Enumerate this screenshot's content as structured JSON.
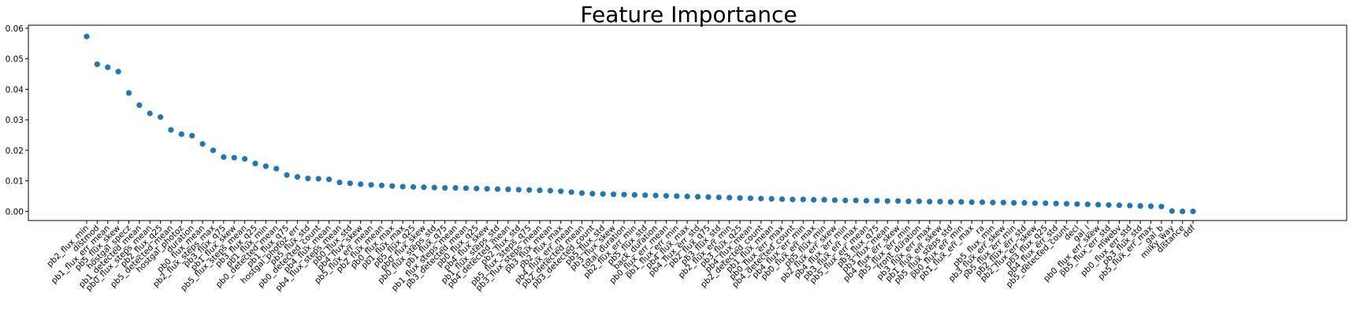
{
  "chart_data": {
    "type": "scatter",
    "title": "Feature Importance",
    "xlabel": "",
    "ylabel": "",
    "ylim": [
      -0.003,
      0.061
    ],
    "yticks": [
      "0.00",
      "0.01",
      "0.02",
      "0.03",
      "0.04",
      "0.05",
      "0.06"
    ],
    "grid": false,
    "marker_color": "#1f77b4",
    "categories": [
      "pb2_flux_min",
      "distmod",
      "pb1_flux_err_mean",
      "pb5_flux_skew",
      "hostgal_specz",
      "pb1_detected_mean",
      "pb0_flux_steps_mean",
      "pb2_flux_q25",
      "pb5_detected_mean",
      "hostgal_photoz",
      "duration",
      "pb0_flux_mean",
      "pb2_flux_steps_max",
      "pb3_flux_q75",
      "pb1_flux_skew",
      "pb5_flux_steps_mean",
      "pb3_flux_q25",
      "pb1_flux_min",
      "pb0_detected_mean",
      "pb1_flux_q75",
      "hostgal_photoz_err",
      "pb5_flux_std",
      "pb0_detected_count",
      "pb4_flux_mean",
      "pb4_flux_steps_mean",
      "pb0_flux_std",
      "pb4_flux_skew",
      "pb5_flux_err_mean",
      "pb2_flux_mean",
      "pb0_flux_max",
      "pb1_flux_max",
      "pb5_flux_q25",
      "pb0_flux_skew",
      "pb0_flux_steps_std",
      "pb1_flux_q75",
      "pb1_flux_steps_mean",
      "pb3_detected_mean",
      "pb0_flux_q25",
      "pb4_flux_skew",
      "pb1_flux_steps_std",
      "pb4_detected_mean",
      "pb2_flux_std",
      "pb5_flux_steps_q75",
      "pb3_flux_steps_mean",
      "pb3_flux_mean",
      "pb2_flux_max",
      "pb4_flux_err_mean",
      "pb2_detected_mean",
      "pb3_detected_count",
      "pb5_flux_std",
      "pb3_flux_skew",
      "total_duration",
      "pb2_flux_err_min",
      "pb5_flux_std",
      "back_duration",
      "pb0_flux_err_mean",
      "pb1_flux_err_min",
      "pb4_flux_max",
      "pb4_flux_err_std",
      "pb2_flux_q75",
      "pb3_flux_std",
      "pb2_flux_err_min",
      "pb3_flux_q25",
      "pb4_flux_mean",
      "pb2_detected_count",
      "pb1_flux_mean",
      "pb0_flux_err_max",
      "pb4_detected_count",
      "pb4_flux_err_min",
      "pb0_flux_err_max",
      "pb5_flux_min",
      "pb2_flux_err_skew",
      "pb4_flux_err_min",
      "pb3_flux_err_max",
      "pb5_flux_err_mean",
      "pb3_flux_q75",
      "pb3_flux_mean",
      "pb4_flux_err_skew",
      "pb5_flux_err_min",
      "front_duration",
      "pb3_flux_err_max",
      "pb1_flux_err_skew",
      "pb5_flux_steps_std",
      "pb0_flux_err_min",
      "pb1_flux_err_max",
      "ra",
      "pb5_flux_min",
      "pb3_flux_err_skew",
      "pb5_flux_err_min",
      "pb2_flux_err_std",
      "pb2_flux_err_skew",
      "pb3_flux_q25",
      "pb4_flux_err_std",
      "pb5_detected_count",
      "decl",
      "gal_l",
      "pb0_flux_err_skew",
      "pb5_flux_err_std",
      "mwebv",
      "pb0_flux_err_std",
      "pb3_flux_std",
      "pb5_flux_err_max",
      "gal_b",
      "milky_way",
      "distance",
      "ddf"
    ],
    "values": [
      0.0573,
      0.0482,
      0.0472,
      0.0458,
      0.0388,
      0.0348,
      0.0321,
      0.0309,
      0.0267,
      0.0253,
      0.0248,
      0.0221,
      0.02,
      0.0178,
      0.0176,
      0.0172,
      0.0157,
      0.0148,
      0.014,
      0.0119,
      0.0113,
      0.0108,
      0.0107,
      0.0105,
      0.0095,
      0.0092,
      0.0089,
      0.0087,
      0.0085,
      0.0083,
      0.0081,
      0.008,
      0.0079,
      0.0078,
      0.0077,
      0.0077,
      0.0076,
      0.0075,
      0.0074,
      0.0073,
      0.0072,
      0.0071,
      0.007,
      0.0069,
      0.0068,
      0.0066,
      0.0063,
      0.006,
      0.0058,
      0.0057,
      0.0056,
      0.0055,
      0.0054,
      0.0053,
      0.0052,
      0.0051,
      0.005,
      0.0049,
      0.0048,
      0.0047,
      0.0046,
      0.0045,
      0.0044,
      0.0043,
      0.0042,
      0.0041,
      0.004,
      0.0039,
      0.0039,
      0.0038,
      0.0038,
      0.0037,
      0.0036,
      0.0036,
      0.0035,
      0.0035,
      0.0034,
      0.0034,
      0.0033,
      0.0033,
      0.0032,
      0.0032,
      0.0031,
      0.0031,
      0.003,
      0.003,
      0.0029,
      0.0029,
      0.0028,
      0.0028,
      0.0027,
      0.0027,
      0.0026,
      0.0025,
      0.0024,
      0.0023,
      0.0022,
      0.0021,
      0.002,
      0.0019,
      0.0018,
      0.0017,
      0.0016,
      0.0001,
      0.0,
      0.0
    ]
  }
}
